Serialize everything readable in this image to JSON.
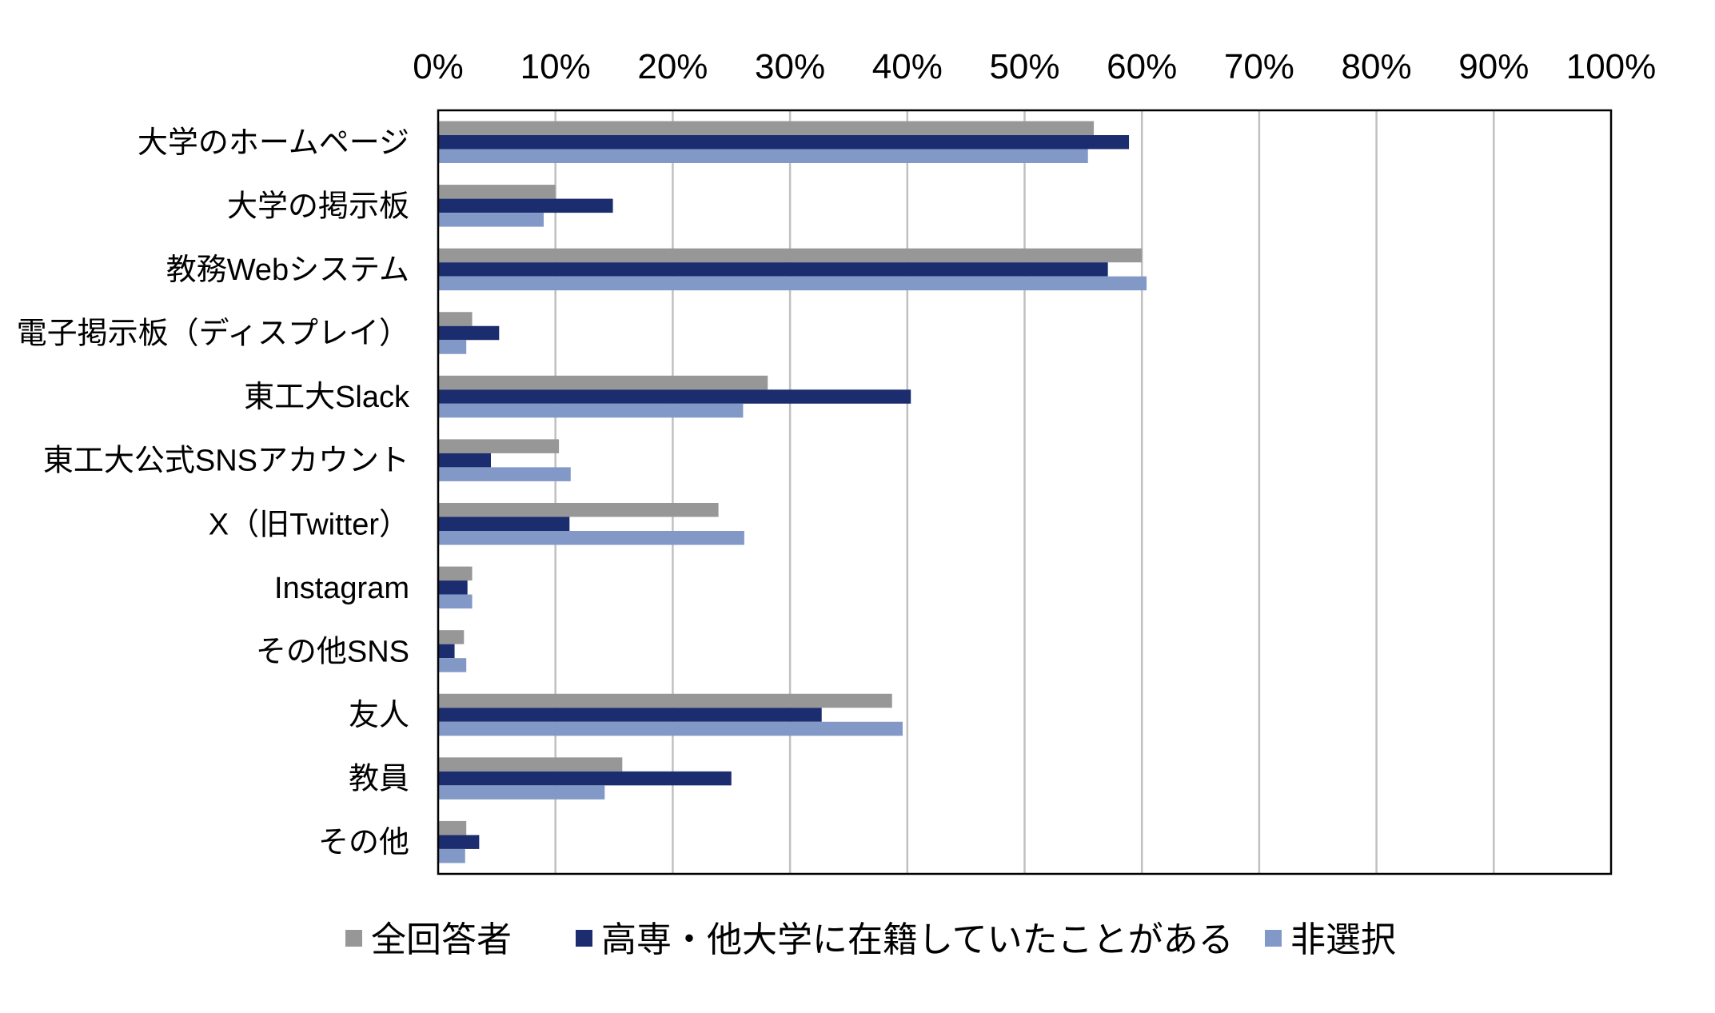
{
  "chart_data": {
    "type": "bar",
    "orientation": "horizontal",
    "title": "",
    "xlabel": "",
    "ylabel": "",
    "xlim": [
      0,
      100
    ],
    "x_tick_labels": [
      "0%",
      "10%",
      "20%",
      "30%",
      "40%",
      "50%",
      "60%",
      "70%",
      "80%",
      "90%",
      "100%"
    ],
    "x_axis_position": "top",
    "grid": true,
    "legend_position": "bottom",
    "categories": [
      "大学のホームページ",
      "大学の掲示板",
      "教務Webシステム",
      "電子掲示板（ディスプレイ）",
      "東工大Slack",
      "東工大公式SNSアカウント",
      "X（旧Twitter）",
      "Instagram",
      "その他SNS",
      "友人",
      "教員",
      "その他"
    ],
    "series": [
      {
        "name": "全回答者",
        "color": "#979797",
        "values": [
          55.9,
          10.0,
          60.0,
          2.9,
          28.1,
          10.3,
          23.9,
          2.9,
          2.2,
          38.7,
          15.7,
          2.4
        ]
      },
      {
        "name": "高専・他大学に在籍していたことがある",
        "color": "#1c2d6f",
        "values": [
          58.9,
          14.9,
          57.1,
          5.2,
          40.3,
          4.5,
          11.2,
          2.5,
          1.4,
          32.7,
          25.0,
          3.5
        ]
      },
      {
        "name": "非選択",
        "color": "#8298c6",
        "values": [
          55.4,
          9.0,
          60.4,
          2.4,
          26.0,
          11.3,
          26.1,
          2.9,
          2.4,
          39.6,
          14.2,
          2.3
        ]
      }
    ]
  }
}
